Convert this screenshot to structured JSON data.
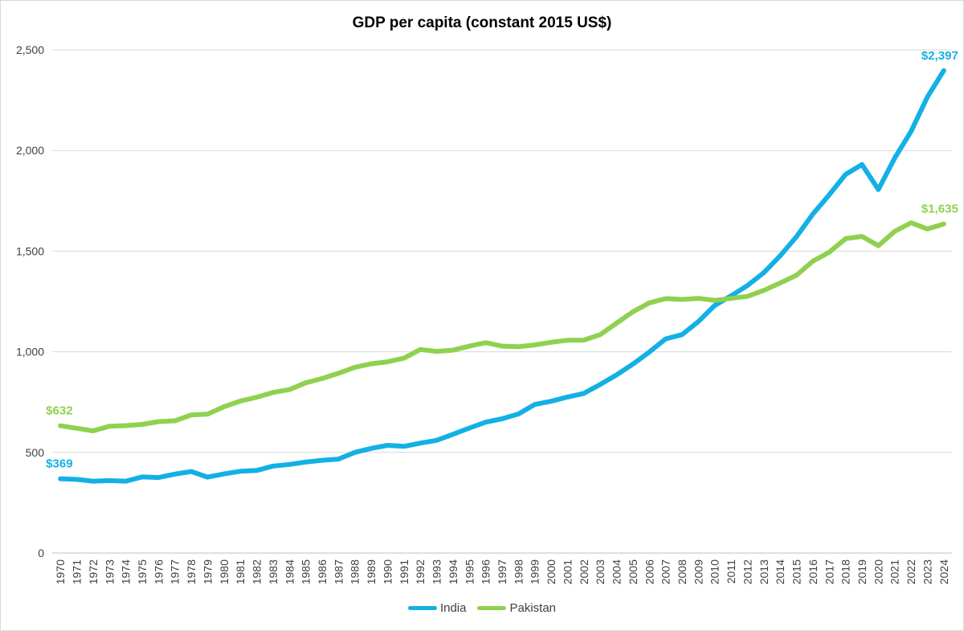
{
  "chart_data": {
    "type": "line",
    "title": "GDP per capita (constant 2015 US$)",
    "xlabel": "",
    "ylabel": "",
    "ylim": [
      0,
      2500
    ],
    "yticks": [
      0,
      500,
      1000,
      1500,
      2000,
      2500
    ],
    "ytick_labels": [
      "0",
      "500",
      "1,000",
      "1,500",
      "2,000",
      "2,500"
    ],
    "grid": true,
    "legend": "bottom-center",
    "x": [
      "1970",
      "1971",
      "1972",
      "1973",
      "1974",
      "1975",
      "1976",
      "1977",
      "1978",
      "1979",
      "1980",
      "1981",
      "1982",
      "1983",
      "1984",
      "1985",
      "1986",
      "1987",
      "1988",
      "1989",
      "1990",
      "1991",
      "1992",
      "1993",
      "1994",
      "1995",
      "1996",
      "1997",
      "1998",
      "1999",
      "2000",
      "2001",
      "2002",
      "2003",
      "2004",
      "2005",
      "2006",
      "2007",
      "2008",
      "2009",
      "2010",
      "2011",
      "2012",
      "2013",
      "2014",
      "2015",
      "2016",
      "2017",
      "2018",
      "2019",
      "2020",
      "2021",
      "2022",
      "2023",
      "2024"
    ],
    "series": [
      {
        "name": "India",
        "color": "#13b0e6",
        "values": [
          369,
          366,
          357,
          360,
          357,
          378,
          375,
          392,
          405,
          377,
          393,
          406,
          410,
          432,
          440,
          452,
          461,
          467,
          500,
          520,
          535,
          530,
          546,
          560,
          590,
          621,
          650,
          667,
          691,
          738,
          754,
          775,
          793,
          838,
          885,
          939,
          999,
          1064,
          1085,
          1150,
          1230,
          1278,
          1329,
          1393,
          1477,
          1572,
          1684,
          1780,
          1881,
          1930,
          1806,
          1962,
          2095,
          2266,
          2397
        ]
      },
      {
        "name": "Pakistan",
        "color": "#8fd14f",
        "values": [
          632,
          620,
          607,
          630,
          633,
          639,
          653,
          657,
          686,
          690,
          727,
          755,
          774,
          798,
          812,
          846,
          867,
          893,
          923,
          940,
          950,
          968,
          1011,
          1002,
          1008,
          1028,
          1045,
          1028,
          1025,
          1034,
          1047,
          1057,
          1058,
          1085,
          1142,
          1199,
          1243,
          1264,
          1260,
          1265,
          1255,
          1265,
          1275,
          1305,
          1342,
          1380,
          1450,
          1495,
          1562,
          1573,
          1527,
          1598,
          1641,
          1610,
          1635
        ]
      }
    ],
    "data_labels": [
      {
        "text": "$369",
        "series": 0,
        "index": 0
      },
      {
        "text": "$632",
        "series": 1,
        "index": 0
      },
      {
        "text": "$2,397",
        "series": 0,
        "index": 54
      },
      {
        "text": "$1,635",
        "series": 1,
        "index": 54
      }
    ]
  }
}
